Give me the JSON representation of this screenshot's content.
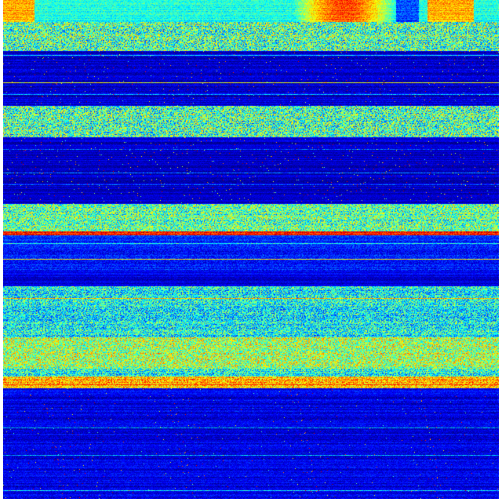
{
  "colormap": {
    "name": "jet",
    "stops": [
      "#00007f",
      "#0000ff",
      "#00ffff",
      "#ffff00",
      "#ff0000",
      "#7f0000"
    ]
  },
  "background": "#ffffff"
}
